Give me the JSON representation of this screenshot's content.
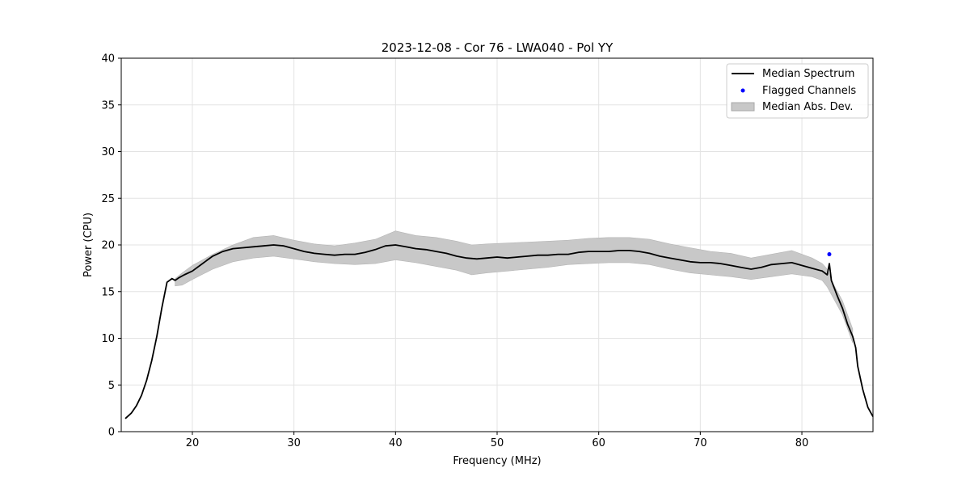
{
  "chart_data": {
    "type": "line",
    "title": "2023-12-08 - Cor 76 - LWA040 - Pol YY",
    "xlabel": "Frequency (MHz)",
    "ylabel": "Power (CPU)",
    "xlim": [
      13,
      87
    ],
    "ylim": [
      0,
      40
    ],
    "xticks": [
      20,
      30,
      40,
      50,
      60,
      70,
      80
    ],
    "yticks": [
      0,
      5,
      10,
      15,
      20,
      25,
      30,
      35,
      40
    ],
    "grid": true,
    "legend_position": "top-right",
    "series": [
      {
        "name": "Median Spectrum",
        "kind": "line",
        "color": "#000000",
        "x": [
          13.4,
          14.0,
          14.5,
          15.0,
          15.5,
          16.0,
          16.5,
          17.0,
          17.5,
          18.0,
          18.3,
          18.7,
          19.2,
          20.0,
          21.0,
          22.0,
          23.0,
          24.0,
          25.0,
          26.0,
          27.0,
          28.0,
          29.0,
          30.0,
          31.0,
          32.0,
          33.0,
          34.0,
          35.0,
          36.0,
          37.0,
          38.0,
          39.0,
          40.0,
          41.0,
          42.0,
          43.0,
          44.0,
          45.0,
          46.0,
          47.0,
          48.0,
          49.0,
          50.0,
          51.0,
          52.0,
          53.0,
          54.0,
          55.0,
          56.0,
          57.0,
          58.0,
          59.0,
          60.0,
          61.0,
          62.0,
          63.0,
          64.0,
          65.0,
          66.0,
          67.0,
          68.0,
          69.0,
          70.0,
          71.0,
          72.0,
          73.0,
          74.0,
          75.0,
          76.0,
          77.0,
          78.0,
          79.0,
          80.0,
          81.0,
          82.0,
          82.5,
          82.7,
          82.9,
          83.5,
          84.0,
          84.5,
          85.0,
          85.3,
          85.5,
          86.0,
          86.5,
          87.0
        ],
        "y": [
          1.4,
          2.0,
          2.8,
          3.9,
          5.5,
          7.6,
          10.2,
          13.3,
          16.0,
          16.4,
          16.2,
          16.5,
          16.8,
          17.2,
          18.0,
          18.8,
          19.3,
          19.6,
          19.7,
          19.8,
          19.9,
          20.0,
          19.9,
          19.6,
          19.3,
          19.1,
          19.0,
          18.9,
          19.0,
          19.0,
          19.2,
          19.5,
          19.9,
          20.0,
          19.8,
          19.6,
          19.5,
          19.3,
          19.1,
          18.8,
          18.6,
          18.5,
          18.6,
          18.7,
          18.6,
          18.7,
          18.8,
          18.9,
          18.9,
          19.0,
          19.0,
          19.2,
          19.3,
          19.3,
          19.3,
          19.4,
          19.4,
          19.3,
          19.1,
          18.8,
          18.6,
          18.4,
          18.2,
          18.1,
          18.1,
          18.0,
          17.8,
          17.6,
          17.4,
          17.6,
          17.9,
          18.0,
          18.1,
          17.8,
          17.5,
          17.2,
          16.8,
          18.0,
          16.2,
          14.5,
          13.2,
          11.5,
          10.2,
          9.0,
          7.0,
          4.5,
          2.6,
          1.6
        ]
      },
      {
        "name": "Flagged Channels",
        "kind": "scatter",
        "color": "#0000ff",
        "x": [
          82.7
        ],
        "y": [
          19.0
        ]
      },
      {
        "name": "Median Abs. Dev.",
        "kind": "band",
        "color": "#c8c8c8",
        "x": [
          18.3,
          19.0,
          20.0,
          22.0,
          24.0,
          26.0,
          28.0,
          30.0,
          32.0,
          34.0,
          36.0,
          38.0,
          40.0,
          42.0,
          44.0,
          46.0,
          47.5,
          49.0,
          51.0,
          53.0,
          55.0,
          57.0,
          59.0,
          61.0,
          63.0,
          65.0,
          67.0,
          69.0,
          71.0,
          73.0,
          75.0,
          77.0,
          79.0,
          81.0,
          82.0,
          82.5,
          83.0,
          84.0,
          85.0
        ],
        "lower": [
          15.6,
          15.7,
          16.3,
          17.4,
          18.2,
          18.6,
          18.8,
          18.5,
          18.2,
          18.0,
          17.9,
          18.0,
          18.4,
          18.1,
          17.7,
          17.3,
          16.8,
          17.0,
          17.2,
          17.4,
          17.6,
          17.9,
          18.0,
          18.1,
          18.1,
          17.9,
          17.4,
          17.0,
          16.8,
          16.6,
          16.3,
          16.6,
          16.9,
          16.6,
          16.2,
          15.5,
          14.5,
          12.5,
          9.5
        ],
        "upper": [
          16.4,
          17.0,
          17.8,
          19.0,
          20.0,
          20.8,
          21.0,
          20.5,
          20.1,
          19.9,
          20.2,
          20.6,
          21.5,
          21.0,
          20.8,
          20.4,
          20.0,
          20.1,
          20.2,
          20.3,
          20.4,
          20.5,
          20.7,
          20.8,
          20.8,
          20.6,
          20.1,
          19.7,
          19.3,
          19.1,
          18.6,
          19.0,
          19.4,
          18.6,
          18.0,
          17.4,
          16.0,
          14.0,
          11.0
        ]
      }
    ]
  }
}
